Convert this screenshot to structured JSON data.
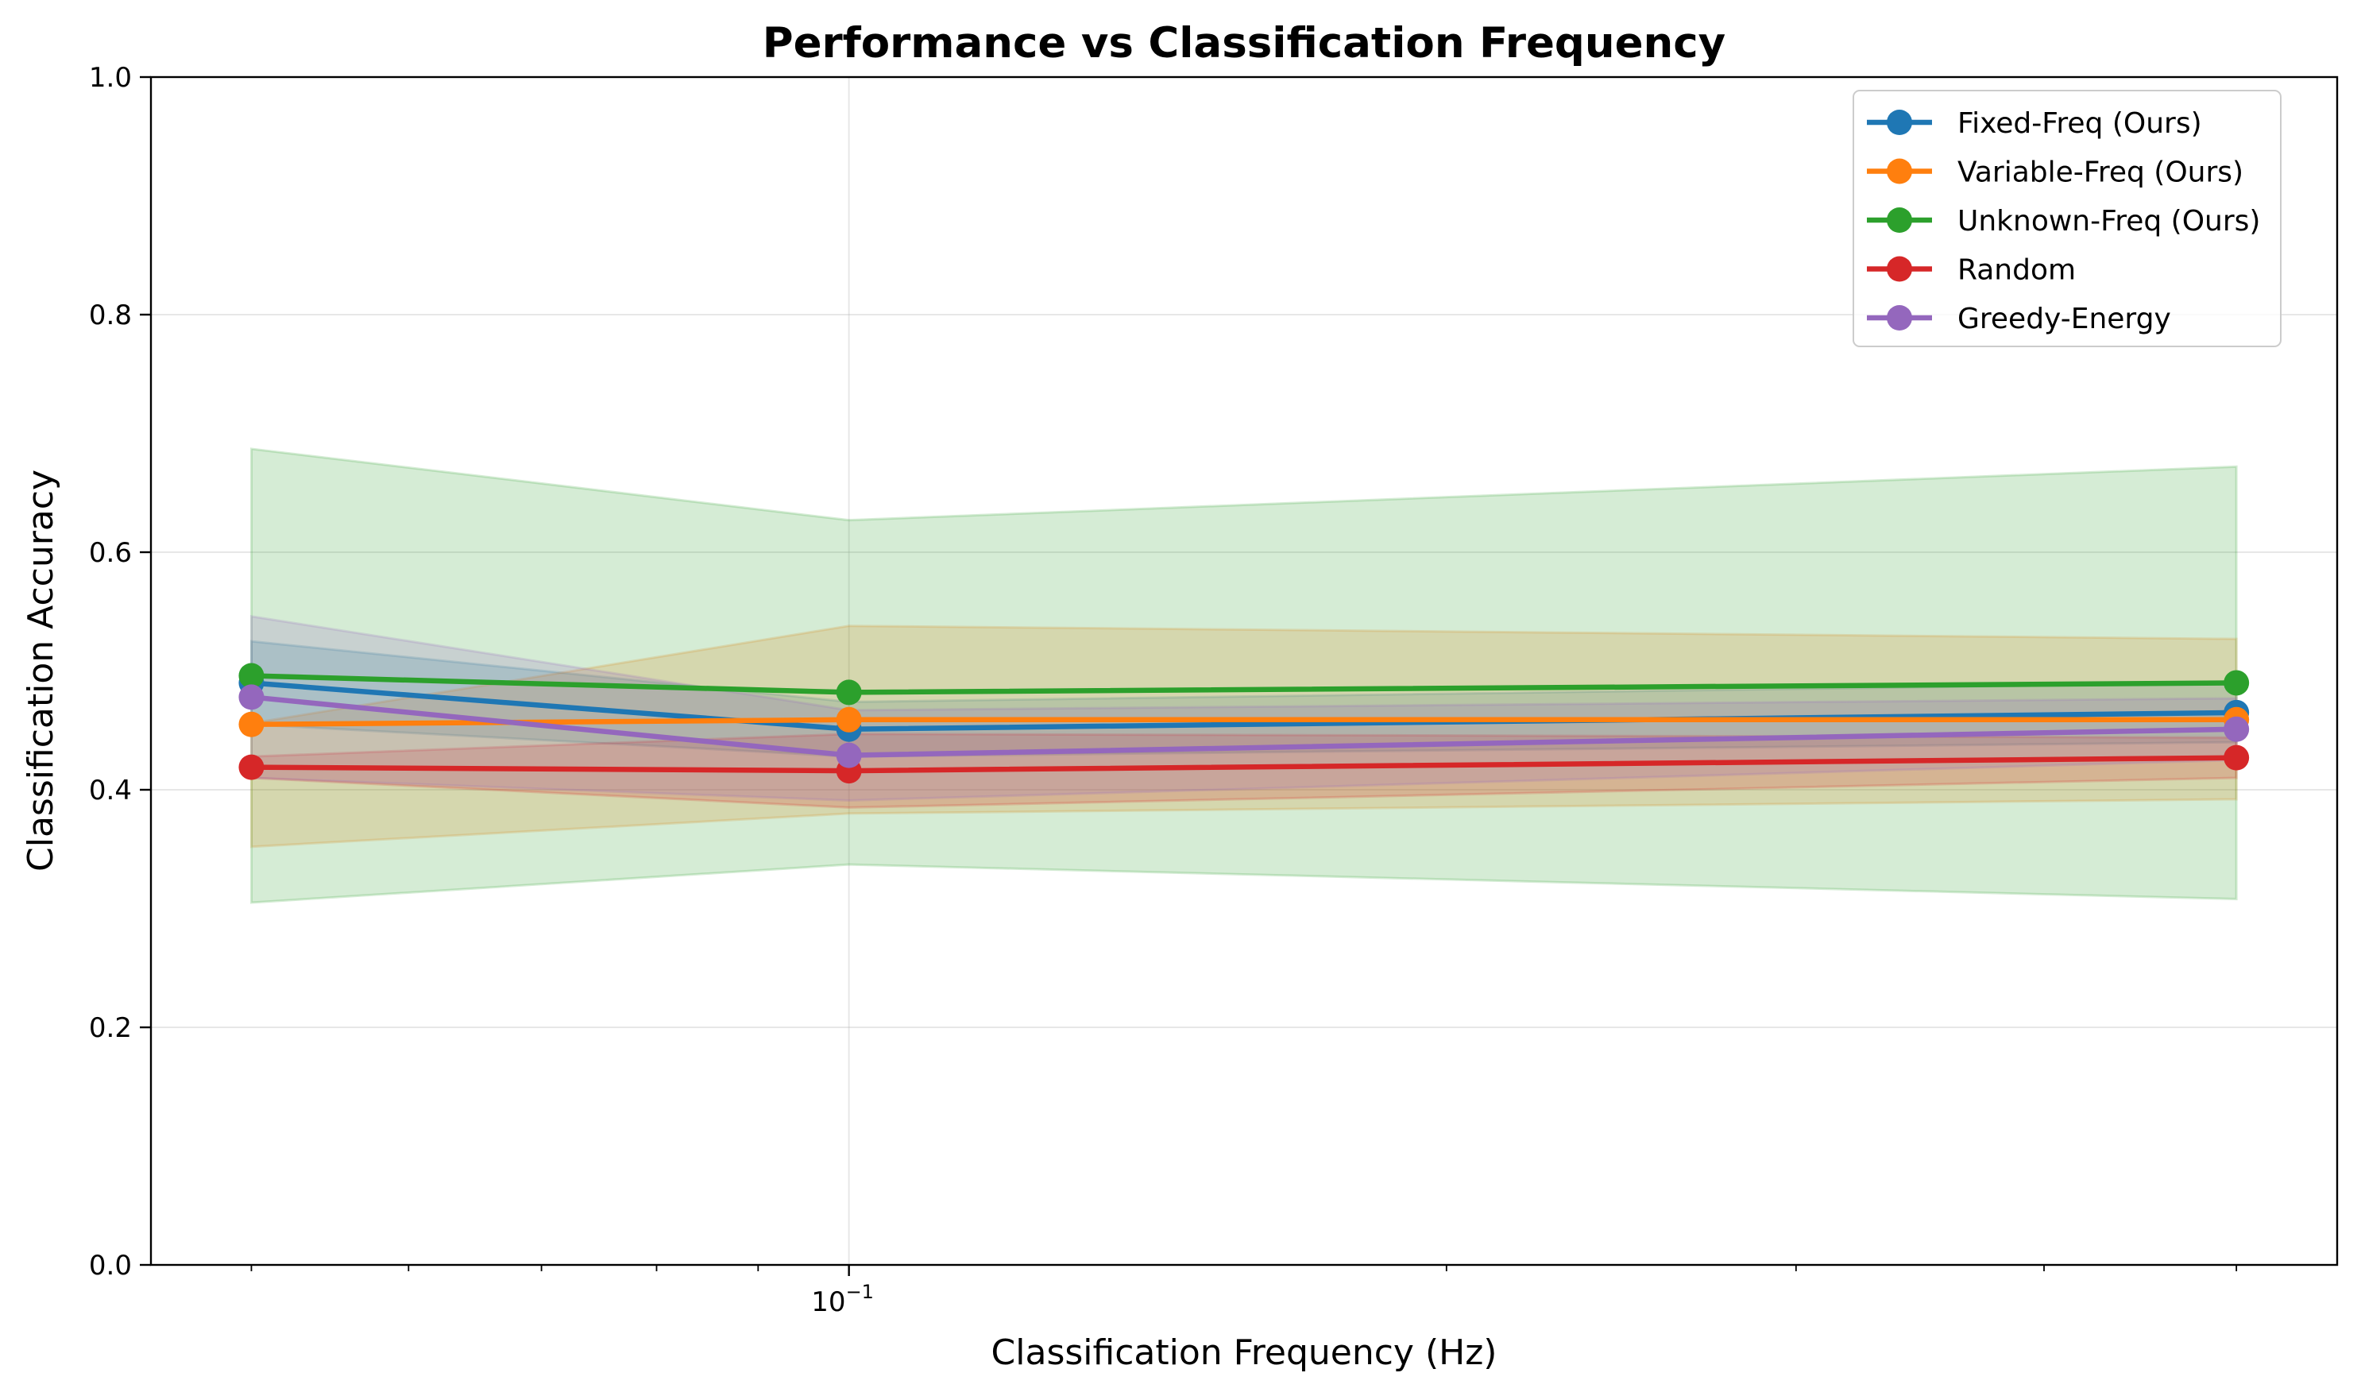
{
  "chart_data": {
    "type": "line",
    "title": "Performance vs Classification Frequency",
    "xlabel": "Classification Frequency (Hz)",
    "ylabel": "Classification Accuracy",
    "x_scale": "log",
    "x": [
      0.05,
      0.1,
      0.5
    ],
    "xlim": [
      0.0445,
      0.562
    ],
    "ylim": [
      0.0,
      1.0
    ],
    "x_major_ticks": [
      {
        "value": 0.1,
        "base": "10",
        "exp": "−1"
      }
    ],
    "x_minor_ticks": [
      0.05,
      0.06,
      0.07,
      0.08,
      0.09,
      0.2,
      0.3,
      0.4,
      0.5
    ],
    "y_ticks": [
      {
        "value": 0.0,
        "label": "0.0"
      },
      {
        "value": 0.2,
        "label": "0.2"
      },
      {
        "value": 0.4,
        "label": "0.4"
      },
      {
        "value": 0.6,
        "label": "0.6"
      },
      {
        "value": 0.8,
        "label": "0.8"
      },
      {
        "value": 1.0,
        "label": "1.0"
      }
    ],
    "grid": true,
    "legend_position": "top-right",
    "series": [
      {
        "name": "Fixed-Freq (Ours)",
        "color": "#1f77b4",
        "values": [
          0.49,
          0.451,
          0.465
        ],
        "lower": [
          0.455,
          0.428,
          0.44
        ],
        "upper": [
          0.525,
          0.474,
          0.49
        ]
      },
      {
        "name": "Variable-Freq (Ours)",
        "color": "#ff7f0e",
        "values": [
          0.455,
          0.459,
          0.459
        ],
        "lower": [
          0.352,
          0.38,
          0.392
        ],
        "upper": [
          0.456,
          0.538,
          0.527
        ]
      },
      {
        "name": "Unknown-Freq (Ours)",
        "color": "#2ca02c",
        "values": [
          0.496,
          0.482,
          0.49
        ],
        "lower": [
          0.305,
          0.337,
          0.308
        ],
        "upper": [
          0.687,
          0.627,
          0.672
        ]
      },
      {
        "name": "Random",
        "color": "#d62728",
        "values": [
          0.419,
          0.416,
          0.427
        ],
        "lower": [
          0.41,
          0.385,
          0.41
        ],
        "upper": [
          0.428,
          0.447,
          0.444
        ]
      },
      {
        "name": "Greedy-Energy",
        "color": "#9467bd",
        "values": [
          0.478,
          0.429,
          0.451
        ],
        "lower": [
          0.41,
          0.391,
          0.425
        ],
        "upper": [
          0.546,
          0.467,
          0.477
        ]
      }
    ]
  }
}
